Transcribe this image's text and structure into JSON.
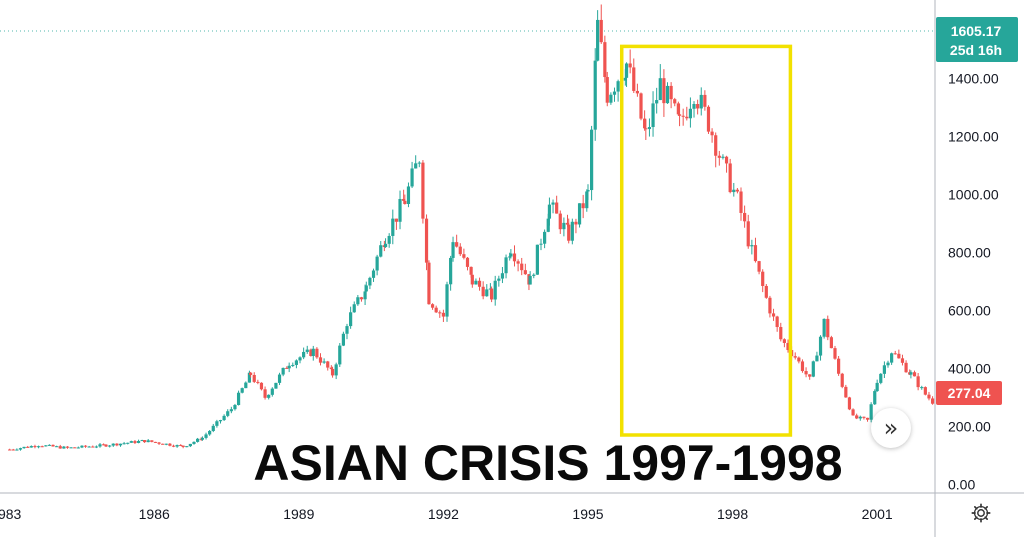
{
  "chart_data": {
    "type": "candlestick",
    "title": "ASIAN CRISIS 1997-1998",
    "x_ticks": [
      "983",
      "1986",
      "1989",
      "1992",
      "1995",
      "1998",
      "2001"
    ],
    "y_ticks": [
      "0.00",
      "200.00",
      "400.00",
      "600.00",
      "800.00",
      "1000.00",
      "1200.00",
      "1400.00"
    ],
    "ylim": [
      -30,
      1670
    ],
    "xlim": [
      1982.8,
      2002.2
    ],
    "price_label": {
      "value": "1605.17",
      "countdown": "25d 16h",
      "color": "#26a69a"
    },
    "last_label": {
      "value": "277.04",
      "color": "#ef5350"
    },
    "highlight_box": {
      "x_from": 1995.7,
      "x_to": 1999.2,
      "y_from": 170,
      "y_to": 1510,
      "color": "#f2e100"
    },
    "up_color": "#26a69a",
    "down_color": "#ef5350",
    "approx_close_path": [
      [
        1983.0,
        120
      ],
      [
        1983.6,
        135
      ],
      [
        1984.2,
        125
      ],
      [
        1985.0,
        135
      ],
      [
        1985.8,
        150
      ],
      [
        1986.6,
        130
      ],
      [
        1987.0,
        160
      ],
      [
        1987.6,
        260
      ],
      [
        1988.0,
        380
      ],
      [
        1988.3,
        300
      ],
      [
        1988.8,
        420
      ],
      [
        1989.3,
        460
      ],
      [
        1989.7,
        380
      ],
      [
        1990.0,
        560
      ],
      [
        1990.4,
        680
      ],
      [
        1990.8,
        860
      ],
      [
        1991.2,
        980
      ],
      [
        1991.5,
        1130
      ],
      [
        1991.7,
        640
      ],
      [
        1992.0,
        580
      ],
      [
        1992.2,
        850
      ],
      [
        1992.6,
        700
      ],
      [
        1993.0,
        650
      ],
      [
        1993.4,
        820
      ],
      [
        1993.8,
        700
      ],
      [
        1994.2,
        960
      ],
      [
        1994.6,
        860
      ],
      [
        1995.0,
        1000
      ],
      [
        1995.2,
        1580
      ],
      [
        1995.4,
        1350
      ],
      [
        1995.8,
        1450
      ],
      [
        1996.2,
        1200
      ],
      [
        1996.5,
        1380
      ],
      [
        1996.9,
        1240
      ],
      [
        1997.2,
        1360
      ],
      [
        1997.5,
        1250
      ],
      [
        1997.8,
        1100
      ],
      [
        1998.1,
        980
      ],
      [
        1998.4,
        800
      ],
      [
        1998.7,
        640
      ],
      [
        1999.0,
        500
      ],
      [
        1999.3,
        440
      ],
      [
        1999.6,
        360
      ],
      [
        1999.9,
        560
      ],
      [
        2000.2,
        380
      ],
      [
        2000.5,
        230
      ],
      [
        2000.8,
        220
      ],
      [
        2001.0,
        360
      ],
      [
        2001.3,
        460
      ],
      [
        2001.7,
        380
      ],
      [
        2002.0,
        310
      ],
      [
        2002.2,
        277
      ]
    ]
  }
}
